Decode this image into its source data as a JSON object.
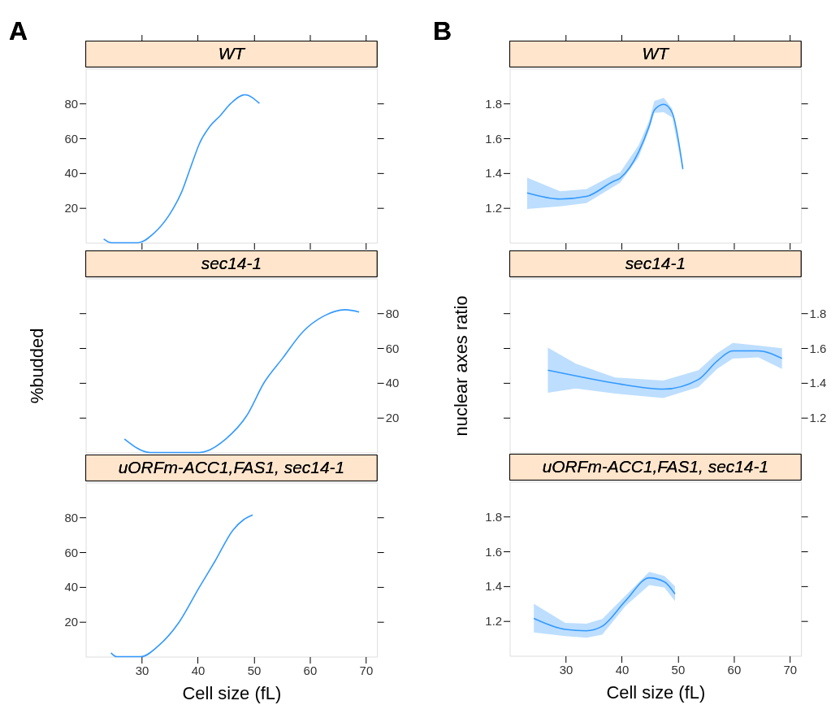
{
  "chart_data": [
    {
      "type": "line",
      "title": "WT",
      "annotations": [
        "A"
      ],
      "xlim": [
        20,
        72
      ],
      "xticks": [
        30,
        40,
        50,
        60,
        70
      ],
      "ylim": [
        0,
        100
      ],
      "yticks": [
        20,
        40,
        60,
        80
      ],
      "tick_labels": "y",
      "series": [
        {
          "color": "#3399ff",
          "x": [
            23.2,
            24.6,
            29.4,
            32,
            34.8,
            37.1,
            38.9,
            40.3,
            42.2,
            44,
            45.9,
            48.4,
            51
          ],
          "values": [
            2.2,
            0,
            0,
            5,
            15.5,
            29,
            45,
            57,
            67,
            73,
            80,
            85,
            80
          ]
        }
      ]
    },
    {
      "type": "line",
      "title": "WT",
      "annotations": [
        "B"
      ],
      "xlim": [
        20,
        72
      ],
      "xticks": [
        30,
        40,
        50,
        60,
        70
      ],
      "ylim": [
        1.0,
        2.0
      ],
      "yticks": [
        1.2,
        1.4,
        1.6,
        1.8
      ],
      "tick_labels": "y",
      "series": [
        {
          "color": "#3399ff",
          "x": [
            23.1,
            29.0,
            33.7,
            38.3,
            39.7,
            43.0,
            44.9,
            45.8,
            47.5,
            49.0,
            50.9
          ],
          "values": [
            1.286,
            1.251,
            1.266,
            1.349,
            1.371,
            1.521,
            1.671,
            1.761,
            1.795,
            1.746,
            1.423
          ],
          "lower": [
            1.194,
            1.209,
            1.228,
            1.318,
            1.344,
            1.491,
            1.649,
            1.746,
            1.75,
            1.719,
            1.409
          ],
          "upper": [
            1.374,
            1.296,
            1.308,
            1.386,
            1.404,
            1.559,
            1.701,
            1.814,
            1.833,
            1.769,
            1.439
          ]
        }
      ]
    },
    {
      "type": "line",
      "title": "sec14-1",
      "ylabel": "%budded",
      "xlim": [
        20,
        72
      ],
      "y2lim": [
        0,
        100
      ],
      "y2ticks": [
        20,
        40,
        60,
        80
      ],
      "tick_labels": "y2",
      "series": [
        {
          "color": "#3399ff",
          "axis": "y2",
          "x": [
            26.9,
            31.5,
            40.3,
            45,
            48.7,
            51.9,
            55.1,
            58.8,
            62.5,
            66.3,
            68.8
          ],
          "values": [
            7.8,
            0,
            0,
            7.8,
            21,
            40.5,
            54,
            69.5,
            78.4,
            82,
            80.7
          ]
        }
      ]
    },
    {
      "type": "line",
      "title": "sec14-1",
      "ylabel": "nuclear axes ratio",
      "xlim": [
        20,
        72
      ],
      "y2lim": [
        1.0,
        2.0
      ],
      "y2ticks": [
        1.2,
        1.4,
        1.6,
        1.8
      ],
      "tick_labels": "y2",
      "series": [
        {
          "color": "#3399ff",
          "axis": "y2",
          "x": [
            26.8,
            31.8,
            38.8,
            47.4,
            53.7,
            57.0,
            59.8,
            64.4,
            68.6
          ],
          "values": [
            1.473,
            1.44,
            1.398,
            1.364,
            1.42,
            1.525,
            1.584,
            1.584,
            1.54
          ],
          "lower": [
            1.343,
            1.368,
            1.339,
            1.313,
            1.376,
            1.48,
            1.54,
            1.547,
            1.48
          ],
          "upper": [
            1.602,
            1.51,
            1.431,
            1.413,
            1.473,
            1.57,
            1.629,
            1.614,
            1.599
          ]
        }
      ]
    },
    {
      "type": "line",
      "title": "uORFm-ACC1,FAS1, sec14-1",
      "xlabel": "Cell size (fL)",
      "xlim": [
        20,
        72
      ],
      "xticks": [
        30,
        40,
        50,
        60,
        70
      ],
      "ylim": [
        0,
        100
      ],
      "yticks": [
        20,
        40,
        60,
        80
      ],
      "series": [
        {
          "color": "#3399ff",
          "x": [
            24.5,
            25.5,
            29.9,
            32.9,
            36.6,
            40.3,
            43.1,
            46.3,
            48.2,
            49.8
          ],
          "values": [
            2.2,
            0,
            0,
            6,
            19.5,
            40,
            55,
            72.8,
            78.7,
            81.4
          ]
        }
      ]
    },
    {
      "type": "line",
      "title": "uORFm-ACC1,FAS1, sec14-1",
      "xlabel": "Cell size (fL)",
      "xlim": [
        20,
        72
      ],
      "xticks": [
        30,
        40,
        50,
        60,
        70
      ],
      "ylim": [
        1.0,
        2.0
      ],
      "yticks": [
        1.2,
        1.4,
        1.6,
        1.8
      ],
      "series": [
        {
          "color": "#3399ff",
          "x": [
            24.3,
            29.9,
            33.7,
            36.5,
            40.7,
            44.9,
            47.6,
            49.5
          ],
          "values": [
            1.215,
            1.152,
            1.144,
            1.17,
            1.317,
            1.448,
            1.425,
            1.355
          ],
          "lower": [
            1.134,
            1.114,
            1.104,
            1.122,
            1.287,
            1.407,
            1.392,
            1.314
          ],
          "upper": [
            1.299,
            1.189,
            1.185,
            1.212,
            1.347,
            1.482,
            1.459,
            1.4
          ]
        }
      ]
    }
  ]
}
